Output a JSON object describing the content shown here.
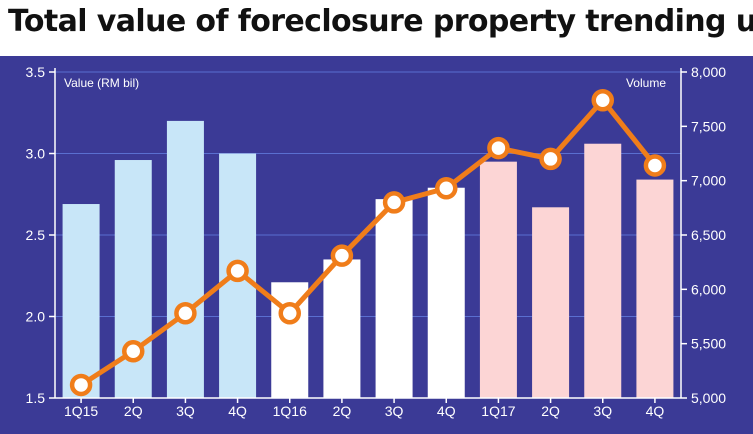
{
  "title": "Total value of foreclosure property trending up",
  "chart_data": {
    "type": "bar",
    "title": "Total value of foreclosure property trending up",
    "categories": [
      "1Q15",
      "2Q",
      "3Q",
      "4Q",
      "1Q16",
      "2Q",
      "3Q",
      "4Q",
      "1Q17",
      "2Q",
      "3Q",
      "4Q"
    ],
    "series": [
      {
        "name": "Value (RM bil)",
        "type": "bar",
        "axis": "left",
        "values": [
          2.69,
          2.96,
          3.2,
          3.0,
          2.21,
          2.35,
          2.72,
          2.79,
          2.95,
          2.67,
          3.06,
          2.84
        ],
        "colors": [
          "#c8e6f8",
          "#c8e6f8",
          "#c8e6f8",
          "#c8e6f8",
          "#ffffff",
          "#ffffff",
          "#ffffff",
          "#ffffff",
          "#fcd5d5",
          "#fcd5d5",
          "#fcd5d5",
          "#fcd5d5"
        ]
      },
      {
        "name": "Volume",
        "type": "line",
        "axis": "right",
        "values": [
          5120,
          5430,
          5780,
          6170,
          5780,
          6310,
          6800,
          6930,
          7300,
          7200,
          7740,
          7140
        ],
        "color": "#f07d1a"
      }
    ],
    "ylabel_left": "Value (RM bil)",
    "ylabel_right": "Volume",
    "ylim_left": [
      1.5,
      3.5
    ],
    "ylim_right": [
      5000,
      8000
    ],
    "yticks_left": [
      "1.5",
      "2.0",
      "2.5",
      "3.0",
      "3.5"
    ],
    "yticks_right": [
      "5,000",
      "5,500",
      "6,000",
      "6,500",
      "7,000",
      "7,500",
      "8,000"
    ],
    "yticks_left_values": [
      1.5,
      2.0,
      2.5,
      3.0,
      3.5
    ],
    "yticks_right_values": [
      5000,
      5500,
      6000,
      6500,
      7000,
      7500,
      8000
    ],
    "grid": true,
    "background": "#3b3a96"
  }
}
